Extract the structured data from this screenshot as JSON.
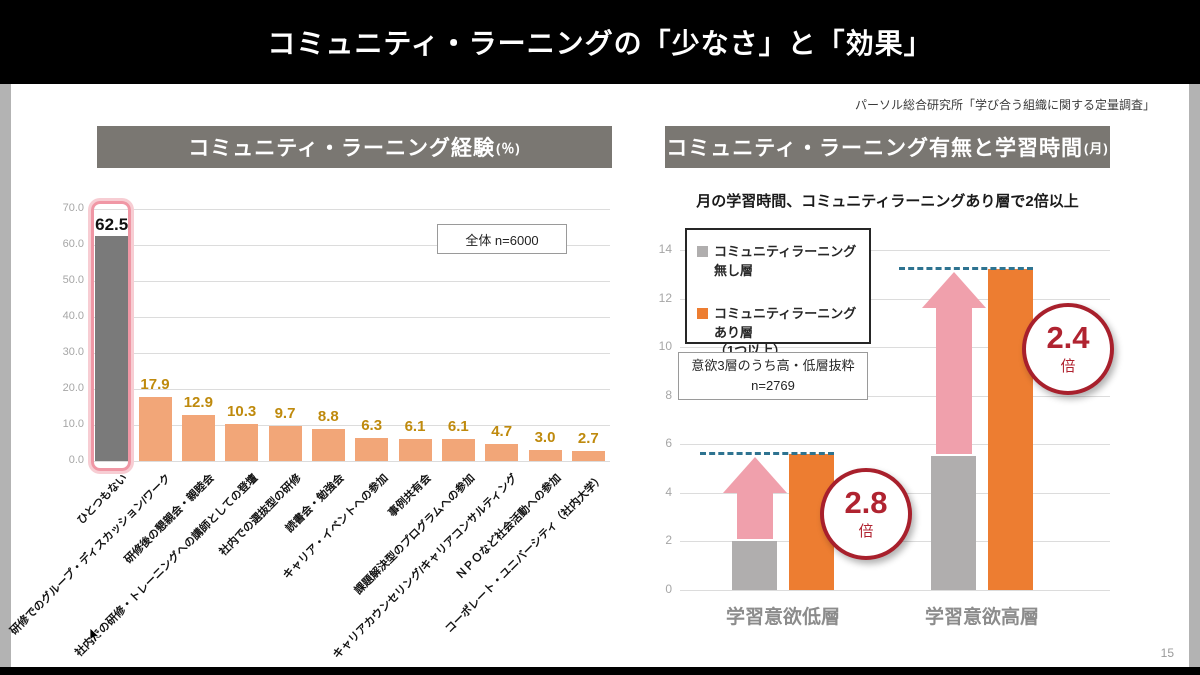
{
  "slide": {
    "title": "コミュニティ・ラーニングの「少なさ」と「効果」",
    "attribution": "パーソル総合研究所「学び合う組織に関する定量調査」",
    "page_number": "15"
  },
  "left_panel": {
    "header_title": "コミュニティ・ラーニング経験",
    "header_suffix": "(％)",
    "note": "全体  n=6000"
  },
  "right_panel": {
    "header_title": "コミュニティ・ラーニング有無と学習時間",
    "header_suffix": "(月)",
    "subtitle": "月の学習時間、コミュニティラーニングあり層で2倍以上",
    "legend": [
      {
        "label": "コミュニティラーニング無し層",
        "color": "#b0aeae"
      },
      {
        "label": "コミュニティラーニングあり層",
        "sublabel": "（1つ以上）",
        "color": "#ed7d31"
      }
    ],
    "note_line1": "意欲3層のうち高・低層抜粋",
    "note_line2": "n=2769",
    "multiplier_low": {
      "value": "2.8",
      "unit": "倍"
    },
    "multiplier_high": {
      "value": "2.4",
      "unit": "倍"
    }
  },
  "chart_data": [
    {
      "type": "bar",
      "title": "コミュニティ・ラーニング経験(%)",
      "categories": [
        "ひとつもない",
        "研修でのグループ・ディスカッション/ワーク",
        "研修後の懇親会・親睦会",
        "社内での研修・トレーニングへの講師としての登壇",
        "社内での選抜型の研修",
        "読書会・勉強会",
        "キャリア・イベントへの参加",
        "事例共有会",
        "課題解決型のプログラムへの参加",
        "キャリアカウンセリング/キャリアコンサルティング",
        "ＮＰＯなど社会活動への参加",
        "コーポレート・ユニバーシティ（社内大学）"
      ],
      "values": [
        62.5,
        17.9,
        12.9,
        10.3,
        9.7,
        8.8,
        6.3,
        6.1,
        6.1,
        4.7,
        3.0,
        2.7
      ],
      "highlight_index": 0,
      "bar_color_default": "#f2a678",
      "bar_color_highlight": "#7a7a7a",
      "value_label_color": "#bf8a0d",
      "ylim": [
        0,
        70
      ],
      "ytick_step": 10,
      "grid": true,
      "annotation": "全体  n=6000"
    },
    {
      "type": "bar",
      "title": "コミュニティ・ラーニング有無と学習時間(月)",
      "subtitle": "月の学習時間、コミュニティラーニングあり層で2倍以上",
      "categories": [
        "学習意欲低層",
        "学習意欲高層"
      ],
      "series": [
        {
          "name": "コミュニティラーニング無し層",
          "color": "#b0aeae",
          "values": [
            2.0,
            5.5
          ]
        },
        {
          "name": "コミュニティラーニングあり層（1つ以上）",
          "color": "#ed7d31",
          "values": [
            5.6,
            13.2
          ]
        }
      ],
      "ylim": [
        0,
        14
      ],
      "ytick_step": 2,
      "grid": true,
      "legend_position": "upper-left",
      "annotations": [
        {
          "group": "学習意欲低層",
          "text": "2.8倍"
        },
        {
          "group": "学習意欲高層",
          "text": "2.4倍"
        }
      ],
      "note": "意欲3層のうち高・低層抜粋 n=2769"
    }
  ]
}
